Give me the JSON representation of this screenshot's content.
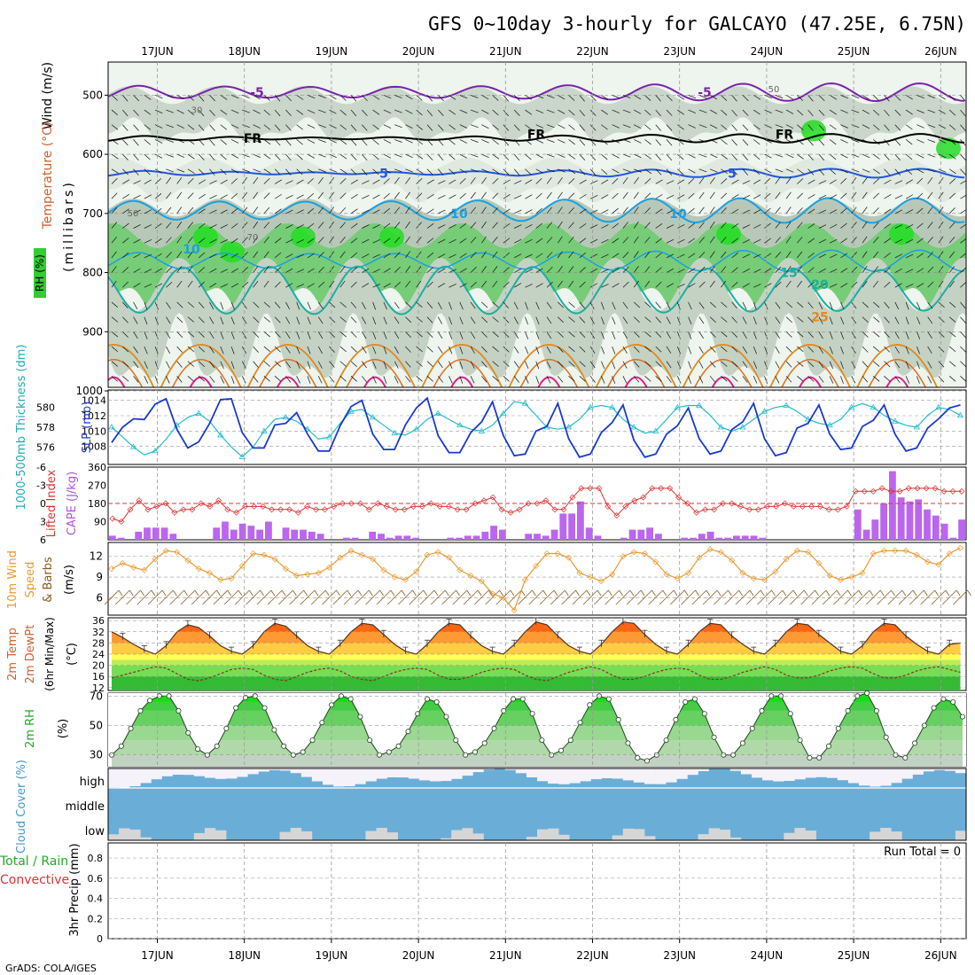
{
  "header": {
    "title": "GFS 0~10day 3-hourly for GALCAYO (47.25E, 6.75N)",
    "footer_credit": "GrADS: COLA/IGES"
  },
  "chart_data": {
    "type": "meteogram",
    "location": "GALCAYO (47.25E, 6.75N)",
    "days": [
      "17JUN",
      "18JUN",
      "19JUN",
      "20JUN",
      "21JUN",
      "22JUN",
      "23JUN",
      "24JUN",
      "25JUN",
      "26JUN"
    ],
    "run_hours_step": 3,
    "panels": [
      {
        "id": "upper_air",
        "type": "heatmap",
        "ylabel_parts": [
          "Wind (m/s)",
          "Temperature (°C)",
          "RH (%)",
          "(millibars)"
        ],
        "y_ticks": [
          500,
          600,
          700,
          800,
          900,
          1000
        ],
        "ylim": [
          1000,
          450
        ],
        "isotherm_labels": [
          "-5",
          "FR",
          "5",
          "10",
          "15",
          "20",
          "25"
        ],
        "rh_labels": [
          "30",
          "50",
          "70"
        ]
      },
      {
        "id": "thickness_slp",
        "type": "line",
        "ylabel_left": "1000-500mb Thickness (dm)",
        "ylabel_right": "SLP (mb)",
        "left_ticks": [
          "576",
          "578",
          "580"
        ],
        "right_ticks": [
          "1008",
          "1010",
          "1012",
          "1014"
        ],
        "series": [
          {
            "name": "SLP (mb)",
            "values": [
              1008.5,
              1010.5,
              1011.6,
              1011.5,
              1013.5,
              1014.2,
              1010.2,
              1007.8,
              1008.6,
              1011.0,
              1014.1,
              1014.2,
              1009.8,
              1007.8,
              1007.8,
              1010.8,
              1011.0,
              1012.4,
              1009.6,
              1007.4,
              1007.4,
              1010.7,
              1013.2,
              1014.0,
              1009.6,
              1007.6,
              1007.6,
              1010.8,
              1013.0,
              1014.3,
              1009.4,
              1007.2,
              1007.2,
              1009.8,
              1011.2,
              1013.8,
              1009.4,
              1006.8,
              1007.0,
              1010.0,
              1010.6,
              1013.6,
              1009.0,
              1006.6,
              1007.0,
              1009.8,
              1011.1,
              1013.4,
              1008.8,
              1006.6,
              1007.0,
              1009.6,
              1010.7,
              1013.0,
              1009.0,
              1007.0,
              1007.4,
              1010.2,
              1011.2,
              1013.6,
              1009.0,
              1006.8,
              1007.2,
              1010.4,
              1011.0,
              1013.4,
              1009.6,
              1007.6,
              1007.8,
              1010.6,
              1011.4,
              1013.4,
              1009.6,
              1007.4,
              1007.8,
              1010.4,
              1011.6,
              1013.0,
              1013.4
            ]
          },
          {
            "name": "1000-500mb Thickness (dm)",
            "values": [
              578.0,
              577.0,
              576.0,
              575.2,
              575.6,
              576.8,
              578.2,
              579.0,
              579.4,
              578.6,
              577.2,
              576.0,
              575.0,
              576.0,
              577.6,
              578.8,
              579.0,
              578.6,
              577.8,
              576.8,
              577.0,
              578.4,
              579.6,
              579.8,
              579.0,
              578.2,
              577.4,
              577.2,
              577.8,
              578.8,
              579.4,
              578.8,
              578.2,
              577.8,
              577.6,
              578.2,
              579.4,
              580.6,
              580.4,
              579.2,
              578.0,
              577.8,
              578.0,
              578.8,
              580.0,
              580.2,
              580.0,
              578.8,
              578.0,
              577.4,
              577.6,
              578.8,
              580.0,
              580.2,
              580.2,
              579.2,
              578.0,
              577.6,
              578.0,
              578.8,
              579.6,
              580.0,
              580.2,
              579.6,
              578.8,
              578.4,
              578.2,
              578.8,
              580.0,
              580.4,
              580.0,
              579.2,
              578.6,
              578.2,
              578.0,
              579.2,
              580.0,
              579.8,
              579.2
            ]
          }
        ]
      },
      {
        "id": "cape_li",
        "type": "bar",
        "ylabel_left": "Lifted Index",
        "ylabel_right": "CAPE (J/kg)",
        "li_ticks": [
          "-6",
          "-3",
          "0",
          "3",
          "6"
        ],
        "cape_ticks": [
          "90",
          "180",
          "270",
          "360"
        ],
        "series": [
          {
            "name": "CAPE (J/kg)",
            "values": [
              20,
              10,
              0,
              40,
              60,
              60,
              60,
              30,
              0,
              0,
              0,
              0,
              60,
              90,
              50,
              80,
              70,
              50,
              90,
              0,
              60,
              50,
              50,
              40,
              30,
              0,
              0,
              10,
              10,
              0,
              40,
              30,
              10,
              20,
              20,
              10,
              0,
              0,
              0,
              10,
              10,
              20,
              20,
              40,
              70,
              50,
              0,
              0,
              30,
              30,
              20,
              50,
              130,
              130,
              190,
              60,
              20,
              0,
              0,
              10,
              50,
              50,
              60,
              30,
              0,
              0,
              10,
              10,
              30,
              40,
              10,
              10,
              20,
              20,
              20,
              10,
              0,
              0,
              0,
              0,
              0,
              0,
              0,
              0,
              0,
              0,
              150,
              50,
              100,
              180,
              340,
              210,
              190,
              200,
              150,
              120,
              80,
              10,
              100
            ]
          },
          {
            "name": "Lifted Index",
            "values": [
              2.5,
              3.0,
              1.0,
              -0.5,
              1.0,
              0.5,
              0.0,
              1.5,
              1.0,
              1.0,
              0.0,
              0.5,
              -0.5,
              1.0,
              1.5,
              0.5,
              0.5,
              0.5,
              1.0,
              1.0,
              1.0,
              1.5,
              0.5,
              1.0,
              1.0,
              0.5,
              0.0,
              0.0,
              0.0,
              1.0,
              0.0,
              0.5,
              1.0,
              1.0,
              0.5,
              0.5,
              0.0,
              0.5,
              0.5,
              1.0,
              1.0,
              0.0,
              -0.5,
              -1.0,
              1.0,
              1.5,
              1.0,
              0.0,
              0.0,
              -0.5,
              1.0,
              1.0,
              -1.0,
              -2.5,
              -2.5,
              -2.5,
              0.5,
              2.0,
              0.5,
              -0.5,
              -1.0,
              -2.5,
              -2.5,
              -2.5,
              -1.0,
              0.0,
              1.5,
              1.0,
              1.0,
              0.0,
              0.0,
              0.5,
              1.0,
              1.0,
              0.5,
              0.5,
              0.0,
              0.5,
              0.5,
              0.5,
              0.5,
              1.0,
              1.0,
              0.5,
              -2.0,
              -2.0,
              -2.0,
              -2.5,
              -2.0,
              -2.0,
              -2.5,
              -2.5,
              -2.5,
              -2.5,
              -2.0,
              -2.0,
              -2.0
            ]
          }
        ]
      },
      {
        "id": "wind10m",
        "type": "line",
        "ylabel": "10m Wind Speed & Barbs (m/s)",
        "y_ticks": [
          "6",
          "9",
          "12"
        ],
        "series": [
          {
            "name": "10m Wind Speed",
            "values": [
              10.2,
              11.0,
              10.4,
              10.0,
              11.6,
              12.8,
              12.6,
              11.4,
              10.2,
              9.6,
              8.6,
              8.8,
              10.6,
              12.4,
              12.2,
              11.6,
              10.2,
              9.2,
              9.4,
              9.6,
              10.4,
              11.8,
              12.8,
              12.2,
              11.6,
              10.0,
              9.0,
              8.6,
              9.8,
              12.2,
              12.6,
              11.8,
              10.0,
              9.2,
              8.4,
              6.6,
              6.0,
              4.2,
              8.6,
              10.6,
              12.4,
              12.4,
              11.8,
              9.6,
              9.0,
              8.4,
              9.4,
              12.0,
              12.6,
              12.4,
              11.2,
              9.4,
              8.8,
              9.6,
              11.8,
              13.0,
              12.6,
              11.4,
              9.6,
              8.8,
              8.6,
              9.8,
              11.6,
              12.8,
              12.6,
              11.0,
              9.2,
              8.6,
              9.0,
              9.6,
              12.4,
              12.8,
              12.8,
              12.8,
              12.2,
              11.2,
              10.8,
              12.4,
              13.2
            ]
          }
        ]
      },
      {
        "id": "temp2m",
        "type": "area",
        "ylabel": "2m Temp 2m DewPt (6hr Min/Max) (°C)",
        "y_ticks": [
          "12",
          "16",
          "20",
          "24",
          "28",
          "32",
          "36"
        ],
        "series": [
          {
            "name": "2m Temp",
            "values": [
              32.0,
              30.0,
              27.5,
              25.5,
              24.0,
              27.0,
              32.0,
              34.5,
              33.5,
              30.5,
              27.0,
              25.0,
              24.0,
              27.0,
              32.0,
              35.0,
              34.0,
              30.5,
              27.0,
              25.0,
              24.0,
              27.5,
              32.0,
              35.0,
              34.5,
              31.0,
              27.5,
              25.0,
              24.0,
              27.5,
              32.0,
              35.0,
              34.5,
              30.5,
              27.0,
              25.0,
              24.0,
              27.5,
              32.0,
              35.5,
              34.5,
              30.5,
              27.0,
              25.0,
              24.0,
              27.5,
              32.0,
              35.5,
              35.0,
              31.0,
              27.5,
              25.0,
              24.0,
              27.5,
              32.0,
              35.0,
              34.5,
              30.5,
              27.5,
              25.0,
              24.0,
              27.5,
              32.0,
              35.0,
              34.5,
              31.0,
              28.0,
              25.0,
              24.0,
              27.0,
              32.0,
              35.0,
              34.5,
              30.5,
              27.5,
              25.0,
              24.0,
              27.5,
              28.0
            ]
          },
          {
            "name": "2m DewPt",
            "values": [
              15.5,
              16.5,
              17.5,
              18.5,
              19.5,
              19.0,
              17.0,
              15.0,
              14.5,
              15.5,
              17.0,
              18.5,
              19.0,
              18.5,
              16.5,
              15.0,
              14.5,
              16.0,
              17.5,
              18.5,
              19.0,
              18.0,
              16.0,
              15.0,
              14.5,
              16.0,
              17.5,
              18.5,
              19.0,
              18.5,
              16.5,
              15.0,
              15.0,
              16.0,
              17.5,
              18.5,
              19.0,
              18.5,
              16.5,
              15.0,
              14.5,
              16.0,
              17.5,
              18.5,
              19.5,
              18.5,
              16.5,
              15.0,
              15.0,
              16.0,
              17.5,
              18.5,
              19.0,
              18.5,
              16.5,
              15.0,
              15.0,
              16.0,
              17.5,
              18.5,
              19.5,
              18.5,
              16.5,
              15.5,
              15.5,
              16.5,
              18.0,
              19.0,
              19.5,
              19.0,
              17.0,
              15.5,
              15.5,
              16.5,
              18.0,
              19.0,
              19.5,
              18.5,
              17.5
            ]
          }
        ]
      },
      {
        "id": "rh2m",
        "type": "area",
        "ylabel": "2m RH (%)",
        "y_ticks": [
          "30",
          "50",
          "70"
        ],
        "series": [
          {
            "name": "2m RH",
            "values": [
              30,
              36,
              48,
              60,
              67,
              70,
              70,
              60,
              45,
              34,
              30,
              36,
              48,
              62,
              69,
              70,
              62,
              47,
              36,
              30,
              32,
              40,
              52,
              64,
              70,
              68,
              56,
              40,
              30,
              32,
              36,
              46,
              58,
              68,
              66,
              56,
              40,
              30,
              32,
              38,
              48,
              60,
              68,
              68,
              58,
              40,
              30,
              33,
              40,
              52,
              64,
              70,
              68,
              54,
              38,
              28,
              26,
              30,
              40,
              54,
              66,
              68,
              58,
              42,
              30,
              30,
              38,
              48,
              60,
              70,
              70,
              58,
              40,
              28,
              28,
              36,
              48,
              60,
              70,
              72,
              60,
              42,
              30,
              28,
              38,
              50,
              62,
              68,
              66,
              56
            ]
          }
        ]
      },
      {
        "id": "cloud",
        "type": "bar",
        "ylabel": "Cloud Cover (%)",
        "levels": [
          "high",
          "middle",
          "low"
        ]
      },
      {
        "id": "precip",
        "type": "bar",
        "ylabel_parts": [
          "Total / Rain",
          "Convective",
          "3hr Precip (mm)"
        ],
        "y_ticks": [
          "0",
          "0.2",
          "0.4",
          "0.6",
          "0.8"
        ],
        "annotation": "Run Total = 0"
      }
    ]
  }
}
